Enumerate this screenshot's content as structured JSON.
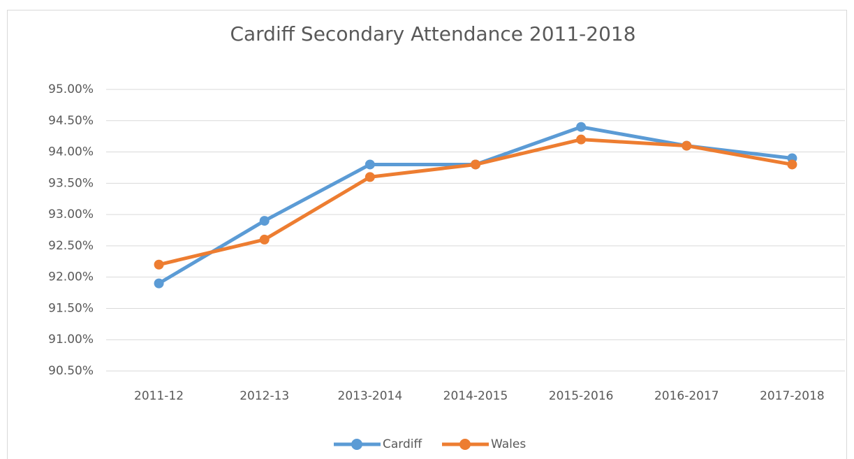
{
  "chart_data": {
    "type": "line",
    "title": "Cardiff Secondary Attendance 2011-2018",
    "categories": [
      "2011-12",
      "2012-13",
      "2013-2014",
      "2014-2015",
      "2015-2016",
      "2016-2017",
      "2017-2018"
    ],
    "series": [
      {
        "name": "Cardiff",
        "color": "#5b9bd5",
        "values": [
          91.9,
          92.9,
          93.8,
          93.8,
          94.4,
          94.1,
          93.9
        ]
      },
      {
        "name": "Wales",
        "color": "#ed7d31",
        "values": [
          92.2,
          92.6,
          93.6,
          93.8,
          94.2,
          94.1,
          93.8
        ]
      }
    ],
    "ylim": [
      90.5,
      95
    ],
    "yticks": [
      {
        "value": 90.5,
        "label": "90.50%"
      },
      {
        "value": 91,
        "label": "91.00%"
      },
      {
        "value": 91.5,
        "label": "91.50%"
      },
      {
        "value": 92,
        "label": "92.00%"
      },
      {
        "value": 92.5,
        "label": "92.50%"
      },
      {
        "value": 93,
        "label": "93.00%"
      },
      {
        "value": 93.5,
        "label": "93.50%"
      },
      {
        "value": 94,
        "label": "94.00%"
      },
      {
        "value": 94.5,
        "label": "94.50%"
      },
      {
        "value": 95,
        "label": "95.00%"
      }
    ],
    "grid": true,
    "legend": "bottom"
  }
}
